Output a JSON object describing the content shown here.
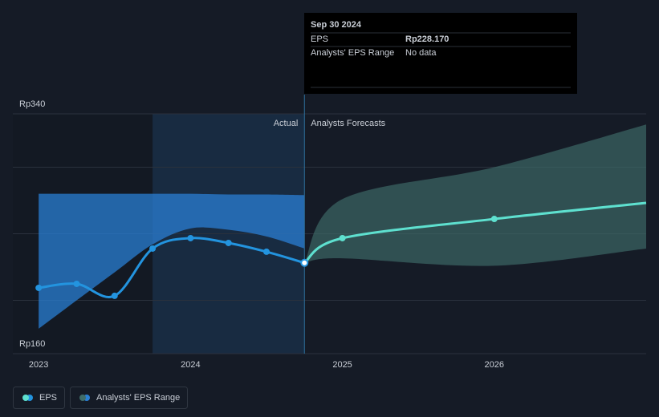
{
  "chart_data": {
    "type": "line",
    "xlim": [
      2022.83,
      2027
    ],
    "xticks": [
      2023,
      2024,
      2025,
      2026
    ],
    "ylim": [
      160,
      340
    ],
    "yticks": [
      {
        "value": 160,
        "label": "Rp160"
      },
      {
        "value": 200,
        "label": null
      },
      {
        "value": 250,
        "label": null
      },
      {
        "value": 300,
        "label": null
      },
      {
        "value": 340,
        "label": "Rp340"
      }
    ],
    "grid": true,
    "divider_x": 2024.75,
    "highlight": [
      2023.75,
      2024.75
    ],
    "divider_labels": {
      "left": "Actual",
      "right": "Analysts Forecasts"
    },
    "series": [
      {
        "name": "EPS",
        "color": "#2394df",
        "x": [
          2023,
          2023.25,
          2023.5,
          2023.75,
          2024,
          2024.25,
          2024.5,
          2024.75
        ],
        "values": [
          209.4,
          212.4,
          203.4,
          238.9,
          246.7,
          243.1,
          236.5,
          228.17
        ],
        "forecast": {
          "color": "#5ee0cf",
          "x": [
            2024.75,
            2025,
            2026,
            2027
          ],
          "values": [
            228.17,
            246.7,
            261.1,
            273.2
          ]
        }
      }
    ],
    "range": {
      "name": "Analysts' EPS Range",
      "color": "#2a7fd4",
      "x": [
        2023,
        2023.25,
        2023.5,
        2023.75,
        2024,
        2024.25,
        2024.5,
        2024.75
      ],
      "upper": [
        280,
        280,
        280,
        280,
        280,
        279.5,
        279.5,
        279
      ],
      "lower": [
        178.7,
        200,
        221,
        242,
        254,
        253,
        248,
        239
      ],
      "forecast": {
        "color": "#3f6d6a",
        "x": [
          2024.75,
          2025,
          2026,
          2027
        ],
        "upper": [
          228.17,
          276,
          300,
          332
        ],
        "lower": [
          228.17,
          231.6,
          226,
          238.9
        ]
      }
    },
    "tooltip": {
      "date": "Sep 30 2024",
      "rows": [
        {
          "label": "EPS",
          "value": "Rp228.170"
        },
        {
          "label": "Analysts' EPS Range",
          "value": "No data"
        }
      ]
    }
  }
}
